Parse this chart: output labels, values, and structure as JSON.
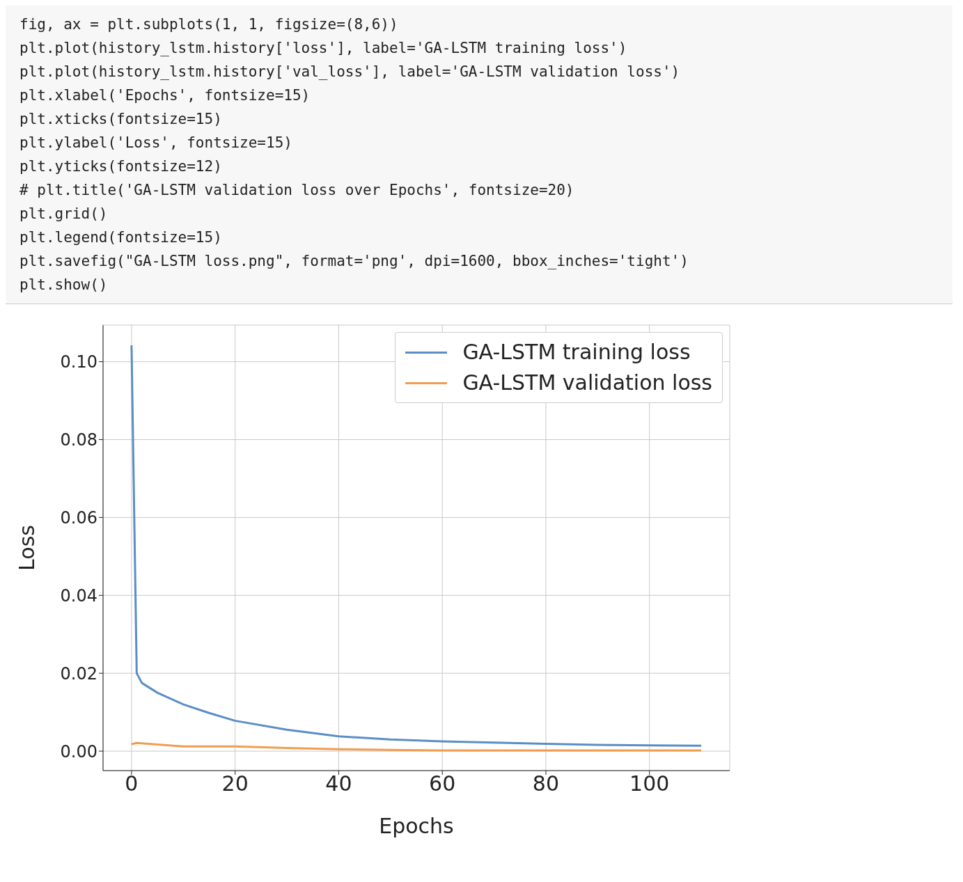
{
  "chart_data": {
    "type": "line",
    "xlabel": "Epochs",
    "ylabel": "Loss",
    "annotations": [
      "fig, ax = plt.subplots(1, 1, figsize=(8,6))",
      "plt.plot(history_lstm.history['loss'], label='GA-LSTM training loss')",
      "plt.plot(history_lstm.history['val_loss'], label='GA-LSTM validation loss')",
      "plt.xlabel('Epochs', fontsize=15)",
      "plt.xticks(fontsize=15)",
      "plt.ylabel('Loss', fontsize=15)",
      "plt.yticks(fontsize=12)",
      "# plt.title('GA-LSTM validation loss over Epochs', fontsize=20)",
      "plt.grid()",
      "plt.legend(fontsize=15)",
      "plt.savefig(\"GA-LSTM loss.png\", format='png', dpi=1600, bbox_inches='tight')",
      "plt.show()"
    ],
    "series": [
      {
        "name": "GA-LSTM training loss",
        "color": "#5a8ec6",
        "x": [
          0,
          1,
          2,
          5,
          10,
          15,
          20,
          30,
          40,
          50,
          60,
          70,
          80,
          90,
          100,
          110
        ],
        "values": [
          0.1042,
          0.02,
          0.0175,
          0.015,
          0.012,
          0.0098,
          0.0078,
          0.0055,
          0.0038,
          0.003,
          0.0025,
          0.0022,
          0.0019,
          0.0016,
          0.0015,
          0.0014
        ]
      },
      {
        "name": "GA-LSTM validation loss",
        "color": "#f39c4f",
        "x": [
          0,
          1,
          5,
          10,
          20,
          30,
          40,
          50,
          60,
          80,
          110
        ],
        "values": [
          0.0018,
          0.0021,
          0.0017,
          0.0012,
          0.0012,
          0.0008,
          0.0005,
          0.0003,
          0.0002,
          0.0002,
          0.0002
        ]
      }
    ],
    "xlim": [
      -5.5,
      115.5
    ],
    "xticks": [
      0,
      20,
      40,
      60,
      80,
      100
    ],
    "ylim": [
      -0.005,
      0.1094
    ],
    "yticks": [
      {
        "value": 0,
        "label": "0.00"
      },
      {
        "value": 0.02,
        "label": "0.02"
      },
      {
        "value": 0.04,
        "label": "0.04"
      },
      {
        "value": 0.06,
        "label": "0.06"
      },
      {
        "value": 0.08,
        "label": "0.08"
      },
      {
        "value": 0.1,
        "label": "0.10"
      }
    ],
    "grid": true,
    "legend": "top right",
    "marker": "none",
    "line_style": "solid"
  }
}
